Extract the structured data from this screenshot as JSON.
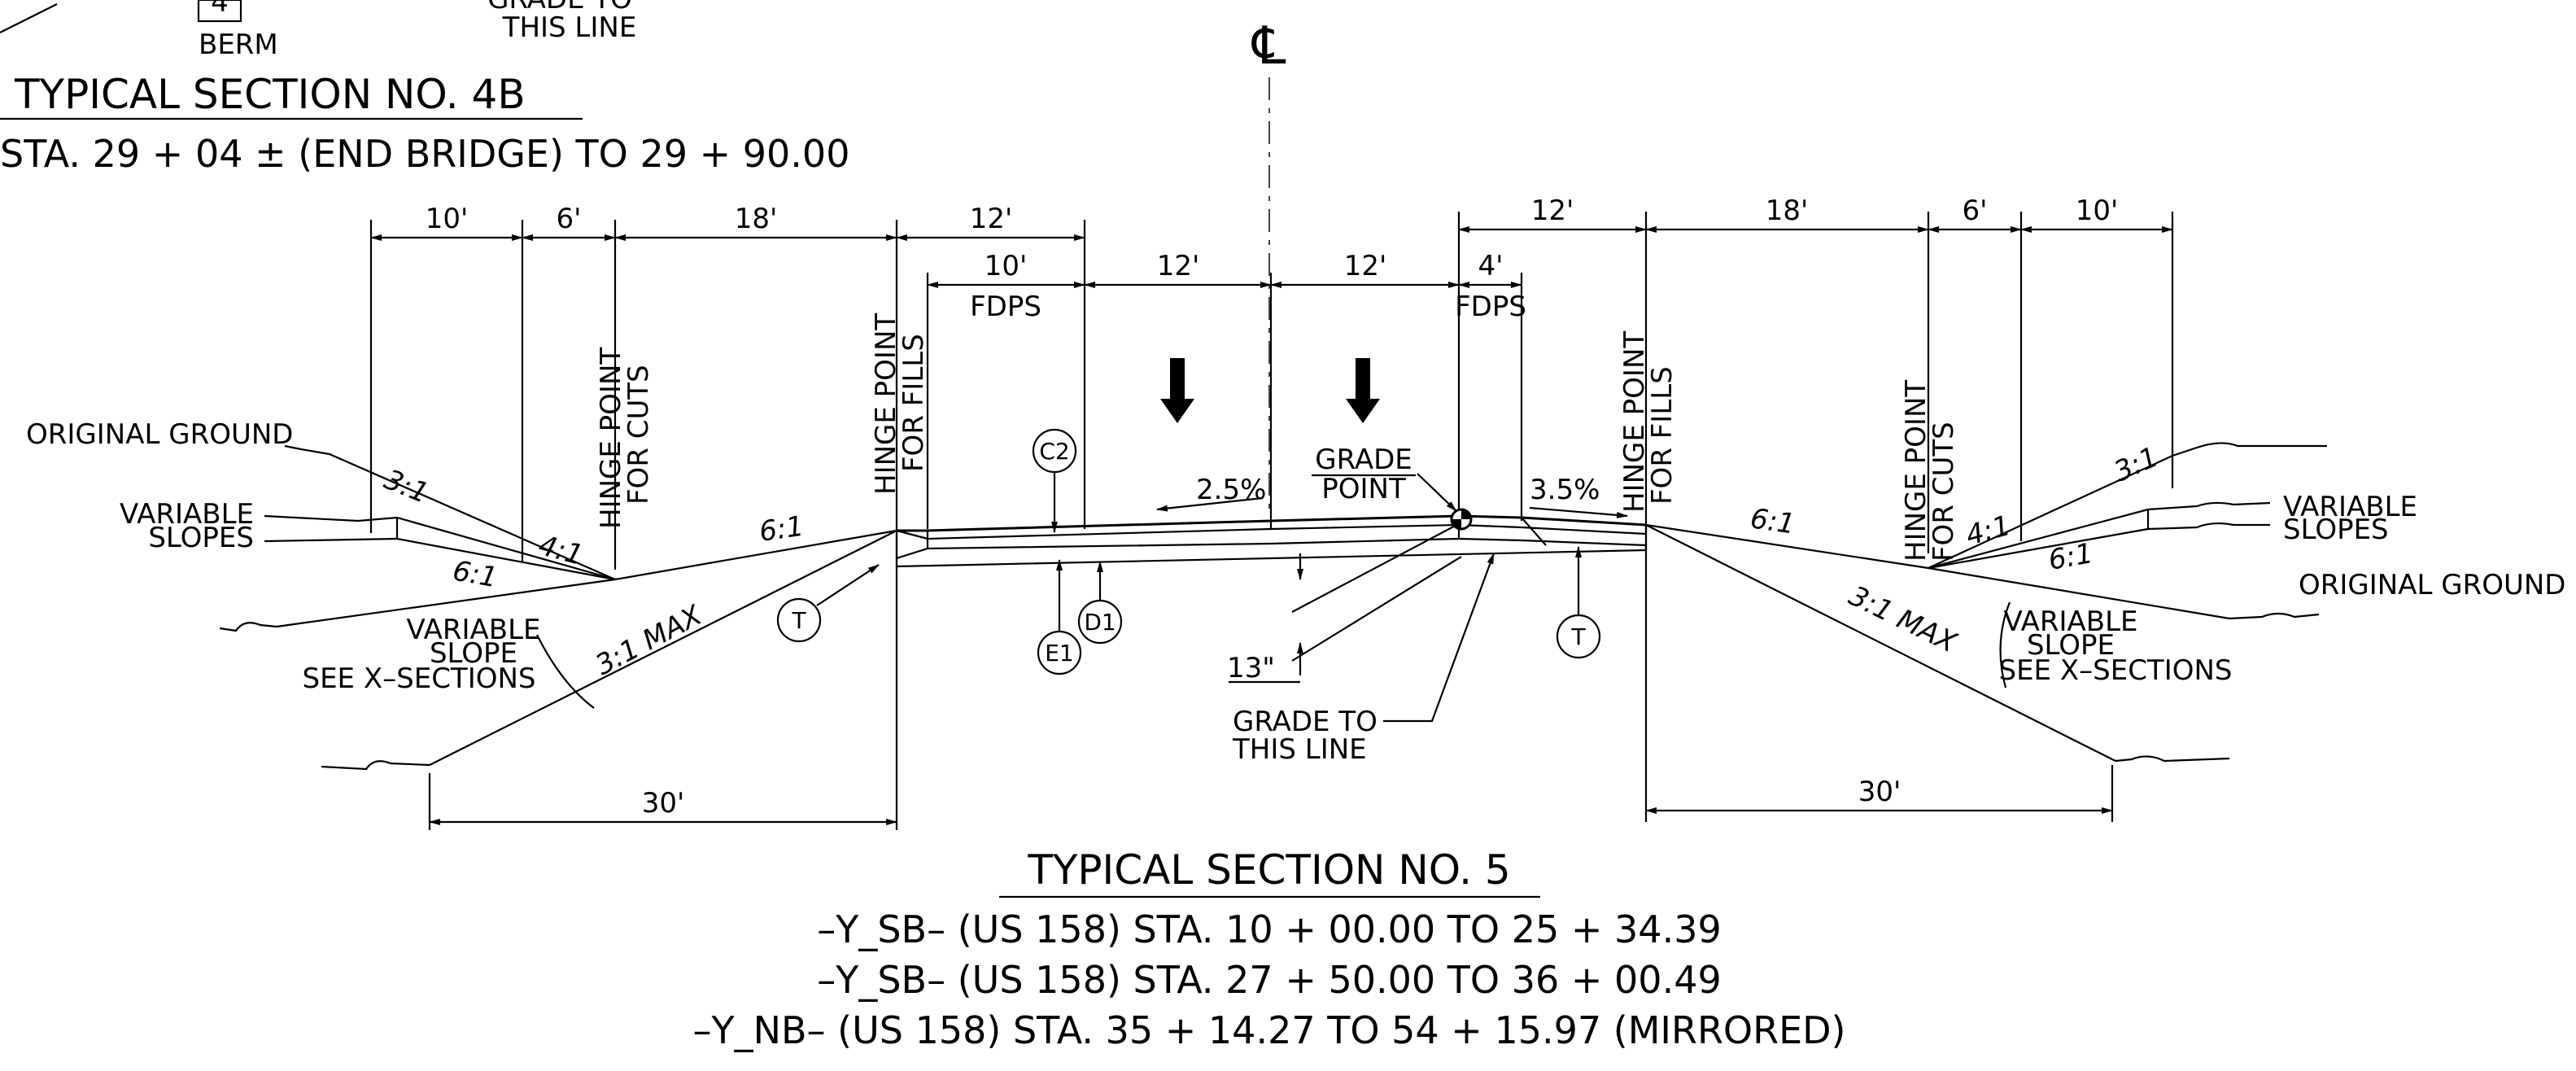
{
  "prev_section": {
    "berm_value": "4",
    "berm_label": "BERM",
    "grade_line_label_1": "GRADE TO",
    "grade_line_label_2": "THIS LINE",
    "title": "TYPICAL SECTION  NO. 4B",
    "station": "STA. 29 + 04 ±    (END  BRIDGE) TO   29 + 90.00"
  },
  "centerline_symbol": "℄",
  "dimensions_left": [
    "10'",
    "6'",
    "18'",
    "12'",
    "10'",
    "12'"
  ],
  "dimensions_right": [
    "12'",
    "4'",
    "12'",
    "18'",
    "6'",
    "10'"
  ],
  "fdps_label": "FDPS",
  "hinge_point_fills": [
    "HINGE POINT",
    "FOR FILLS"
  ],
  "hinge_point_cuts": [
    "HINGE POINT",
    "FOR CUTS"
  ],
  "original_ground": "ORIGINAL GROUND",
  "variable_slopes": [
    "VARIABLE",
    "SLOPES"
  ],
  "variable_slope_see": [
    "VARIABLE",
    "SLOPE",
    "SEE X–SECTIONS"
  ],
  "slopes": {
    "cut_3to1": "3:1",
    "cut_4to1": "4:1",
    "fill_6to1": "6:1",
    "max_3to1": "3:1 MAX"
  },
  "cross_slopes": {
    "left": "2.5%",
    "right": "3.5%"
  },
  "grade_point": [
    "GRADE",
    "POINT"
  ],
  "grade_to_this_line": [
    "GRADE TO",
    "THIS LINE"
  ],
  "depth_13": "13\"",
  "callouts": [
    "C2",
    "T",
    "E1",
    "D1",
    "T"
  ],
  "bottom_dims": [
    "30'",
    "30'"
  ],
  "title": "TYPICAL SECTION   NO. 5",
  "stations": [
    "–Y_SB–  (US  158) STA.  10 + 00.00   TO   25 + 34.39",
    "–Y_SB–  (US  158) STA.  27 + 50.00   TO   36 + 00.49",
    "–Y_NB–  (US  158) STA.  35 + 14.27   TO   54 + 15.97  (MIRRORED)"
  ]
}
